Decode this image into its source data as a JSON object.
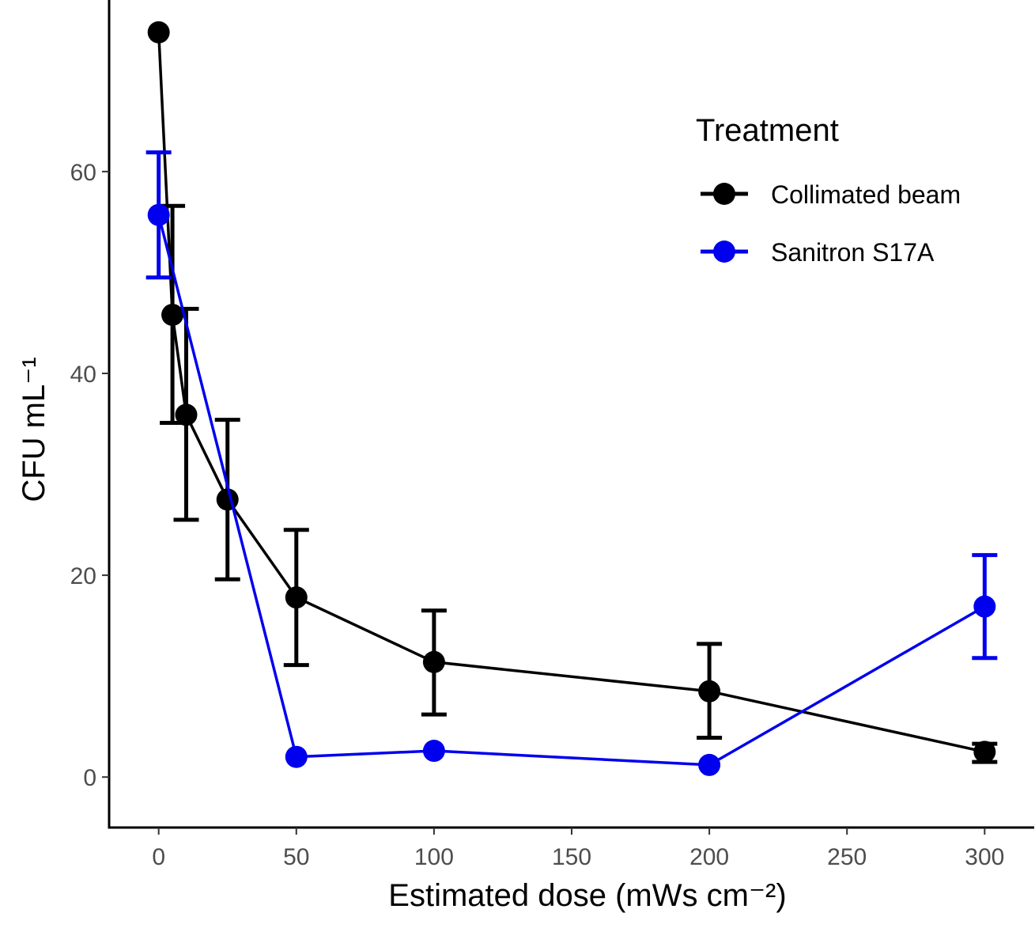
{
  "chart_data": {
    "type": "line",
    "xlabel": "Estimated dose (mWs cm⁻²)",
    "ylabel": "CFU mL⁻¹",
    "xlim": [
      -18,
      318
    ],
    "ylim": [
      -5,
      77
    ],
    "x_ticks": [
      0,
      50,
      100,
      150,
      200,
      250,
      300
    ],
    "y_ticks": [
      0,
      20,
      40,
      60
    ],
    "grid": false,
    "legend": {
      "title": "Treatment",
      "position": "top-right"
    },
    "series": [
      {
        "name": "Collimated beam",
        "color": "#000000",
        "points": [
          {
            "x": 0,
            "y": 73.8
          },
          {
            "x": 5,
            "y": 45.8,
            "ymin": 35.1,
            "ymax": 56.6
          },
          {
            "x": 10,
            "y": 35.9,
            "ymin": 25.5,
            "ymax": 46.4
          },
          {
            "x": 25,
            "y": 27.5,
            "ymin": 19.6,
            "ymax": 35.4
          },
          {
            "x": 50,
            "y": 17.8,
            "ymin": 11.1,
            "ymax": 24.5
          },
          {
            "x": 100,
            "y": 11.4,
            "ymin": 6.2,
            "ymax": 16.5
          },
          {
            "x": 200,
            "y": 8.5,
            "ymin": 3.9,
            "ymax": 13.2
          },
          {
            "x": 300,
            "y": 2.5,
            "ymin": 1.5,
            "ymax": 3.3
          }
        ]
      },
      {
        "name": "Sanitron S17A",
        "color": "#0000ee",
        "points": [
          {
            "x": 0,
            "y": 55.7,
            "ymin": 49.5,
            "ymax": 61.9
          },
          {
            "x": 50,
            "y": 2.0
          },
          {
            "x": 100,
            "y": 2.6
          },
          {
            "x": 200,
            "y": 1.2
          },
          {
            "x": 300,
            "y": 16.9,
            "ymin": 11.8,
            "ymax": 22.0
          }
        ]
      }
    ]
  }
}
